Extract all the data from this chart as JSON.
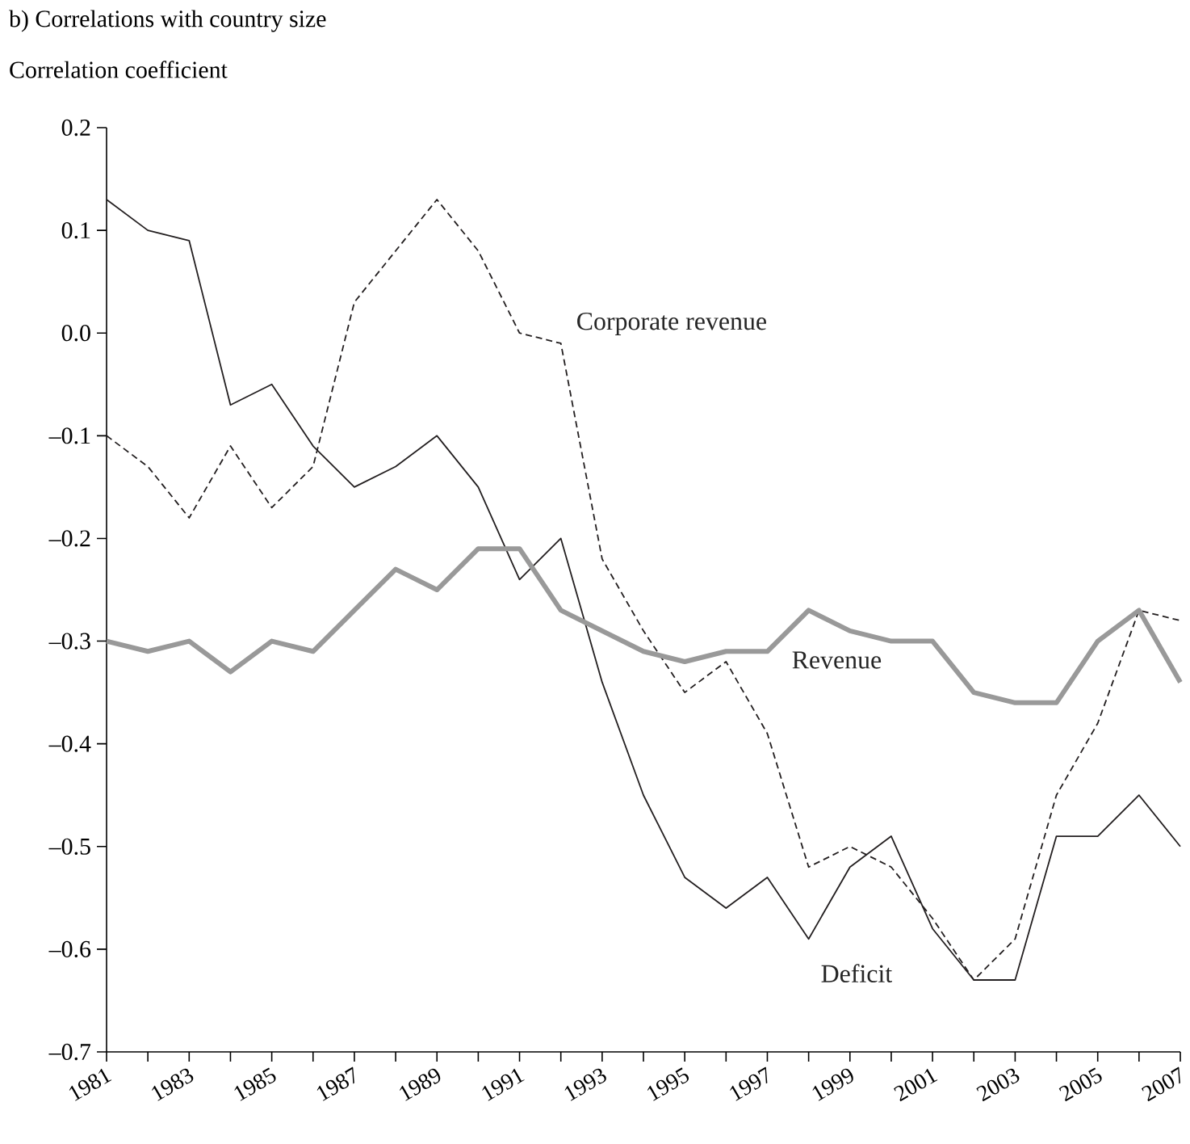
{
  "chart_data": {
    "type": "line",
    "title": "b) Correlations with country size",
    "ylabel": "Correlation coefficient",
    "x": [
      1981,
      1982,
      1983,
      1984,
      1985,
      1986,
      1987,
      1988,
      1989,
      1990,
      1991,
      1992,
      1993,
      1994,
      1995,
      1996,
      1997,
      1998,
      1999,
      2000,
      2001,
      2002,
      2003,
      2004,
      2005,
      2006,
      2007
    ],
    "series": [
      {
        "name": "Deficit",
        "color": "#231f20",
        "line_style": "solid",
        "values": [
          0.13,
          0.1,
          0.09,
          -0.07,
          -0.05,
          -0.11,
          -0.15,
          -0.13,
          -0.1,
          -0.15,
          -0.24,
          -0.2,
          -0.34,
          -0.45,
          -0.53,
          -0.56,
          -0.53,
          -0.59,
          -0.52,
          -0.49,
          -0.58,
          -0.63,
          -0.63,
          -0.49,
          -0.49,
          -0.45,
          -0.5
        ]
      },
      {
        "name": "Corporate revenue",
        "color": "#231f20",
        "line_style": "dashed",
        "values": [
          -0.1,
          -0.13,
          -0.18,
          -0.11,
          -0.17,
          -0.13,
          0.03,
          0.08,
          0.13,
          0.08,
          0.0,
          -0.01,
          -0.22,
          -0.29,
          -0.35,
          -0.32,
          -0.39,
          -0.52,
          -0.5,
          -0.52,
          -0.57,
          -0.63,
          -0.59,
          -0.45,
          -0.38,
          -0.27,
          -0.28
        ]
      },
      {
        "name": "Revenue",
        "color": "#999999",
        "line_style": "solid",
        "values": [
          -0.3,
          -0.31,
          -0.3,
          -0.33,
          -0.3,
          -0.31,
          -0.27,
          -0.23,
          -0.25,
          -0.21,
          -0.21,
          -0.27,
          -0.29,
          -0.31,
          -0.32,
          -0.31,
          -0.31,
          -0.27,
          -0.29,
          -0.3,
          -0.3,
          -0.35,
          -0.36,
          -0.36,
          -0.3,
          -0.27,
          -0.34
        ]
      }
    ],
    "xlim": [
      1981,
      2007
    ],
    "xticks": [
      1981,
      {
        "value": 1982,
        "label": null
      },
      1983,
      {
        "value": 1984,
        "label": null
      },
      1985,
      {
        "value": 1986,
        "label": null
      },
      1987,
      {
        "value": 1988,
        "label": null
      },
      1989,
      {
        "value": 1990,
        "label": null
      },
      1991,
      {
        "value": 1992,
        "label": null
      },
      1993,
      {
        "value": 1994,
        "label": null
      },
      1995,
      {
        "value": 1996,
        "label": null
      },
      1997,
      {
        "value": 1998,
        "label": null
      },
      1999,
      {
        "value": 2000,
        "label": null
      },
      2001,
      {
        "value": 2002,
        "label": null
      },
      2003,
      {
        "value": 2004,
        "label": null
      },
      2005,
      {
        "value": 2006,
        "label": null
      },
      2007
    ],
    "ylim": [
      -0.7,
      0.2
    ],
    "yticks": [
      {
        "value": -0.7,
        "label": "–0.7"
      },
      {
        "value": -0.6,
        "label": "–0.6"
      },
      {
        "value": -0.5,
        "label": "–0.5"
      },
      {
        "value": -0.4,
        "label": "–0.4"
      },
      {
        "value": -0.3,
        "label": "–0.3"
      },
      {
        "value": -0.2,
        "label": "–0.2"
      },
      {
        "value": -0.1,
        "label": "–0.1"
      },
      {
        "value": 0,
        "label": "0.0"
      },
      0.1,
      0.2
    ],
    "grid": false,
    "legend": false,
    "marker": "none"
  }
}
